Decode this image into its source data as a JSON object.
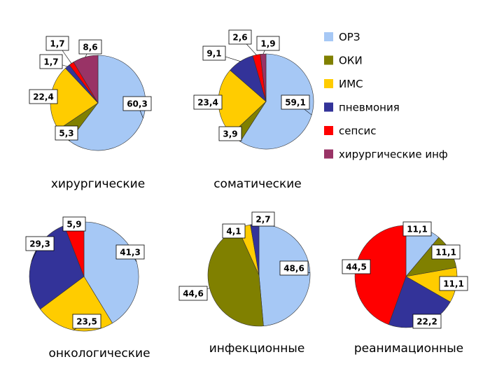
{
  "legend": {
    "items": [
      {
        "label": "ОРЗ",
        "color": "#a6c8f5"
      },
      {
        "label": "ОКИ",
        "color": "#808000"
      },
      {
        "label": "ИМС",
        "color": "#ffcc00"
      },
      {
        "label": "пневмония",
        "color": "#333399"
      },
      {
        "label": "сепсис",
        "color": "#ff0000"
      },
      {
        "label": "хирургические инф",
        "color": "#993366"
      }
    ]
  },
  "chart_data": [
    {
      "type": "pie",
      "title": "хирургические",
      "categories": [
        "ОРЗ",
        "ОКИ",
        "ИМС",
        "пневмония",
        "сепсис",
        "хирургические инф"
      ],
      "values": [
        60.3,
        5.3,
        22.4,
        1.7,
        1.7,
        8.6
      ],
      "labels": [
        "60,3",
        "5,3",
        "22,4",
        "1,7",
        "1,7",
        "8,6"
      ]
    },
    {
      "type": "pie",
      "title": "соматические",
      "categories": [
        "ОРЗ",
        "ОКИ",
        "ИМС",
        "пневмония",
        "сепсис",
        "хирургические инф"
      ],
      "values": [
        59.1,
        3.9,
        23.4,
        9.1,
        2.6,
        1.9
      ],
      "labels": [
        "59,1",
        "3,9",
        "23,4",
        "9,1",
        "2,6",
        "1,9"
      ]
    },
    {
      "type": "pie",
      "title": "онкологические",
      "categories": [
        "ОРЗ",
        "ИМС",
        "пневмония",
        "сепсис"
      ],
      "values": [
        41.3,
        23.5,
        29.3,
        5.9
      ],
      "labels": [
        "41,3",
        "23,5",
        "29,3",
        "5,9"
      ]
    },
    {
      "type": "pie",
      "title": "инфекционные",
      "categories": [
        "ОРЗ",
        "ОКИ",
        "ИМС",
        "пневмония"
      ],
      "values": [
        48.6,
        44.6,
        4.1,
        2.7
      ],
      "labels": [
        "48,6",
        "44,6",
        "4,1",
        "2,7"
      ]
    },
    {
      "type": "pie",
      "title": "реанимационные",
      "categories": [
        "ОРЗ",
        "ОКИ",
        "ИМС",
        "пневмония",
        "сепсис"
      ],
      "values": [
        11.1,
        11.1,
        11.1,
        22.2,
        44.5
      ],
      "labels": [
        "11,1",
        "11,1",
        "11,1",
        "22,2",
        "44,5"
      ]
    }
  ]
}
